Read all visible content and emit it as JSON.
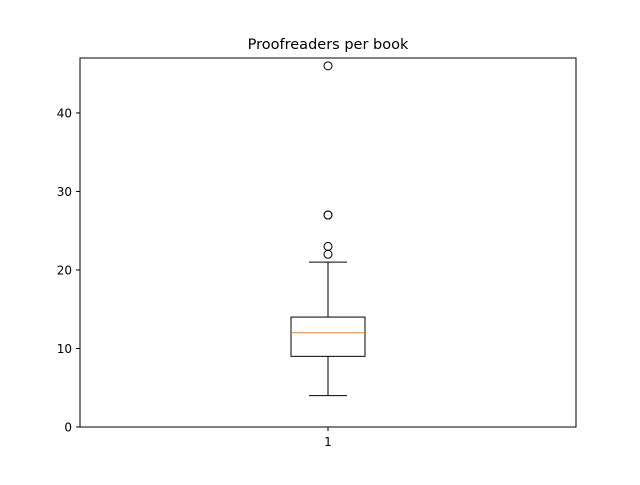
{
  "chart_data": {
    "type": "box",
    "title": "Proofreaders per book",
    "xlabel": "",
    "ylabel": "",
    "ylim": [
      0,
      47
    ],
    "y_ticks": [
      0,
      10,
      20,
      30,
      40
    ],
    "x_ticks": [
      "1"
    ],
    "grid": false,
    "series": [
      {
        "category": "1",
        "whisker_low": 4,
        "q1": 9,
        "median": 12,
        "q3": 14,
        "whisker_high": 21,
        "outliers": [
          22,
          23,
          27,
          27,
          46
        ]
      }
    ],
    "colors": {
      "box": "#000000",
      "median": "#ff7f0e",
      "outlier": "#000000"
    }
  }
}
